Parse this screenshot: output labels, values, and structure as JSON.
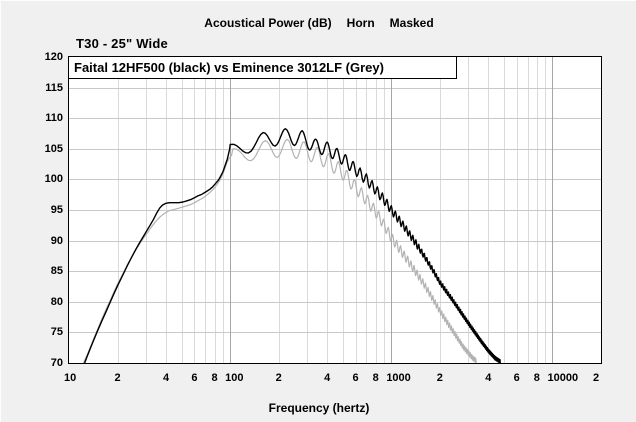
{
  "header": {
    "title_parts": [
      "Acoustical Power (dB)",
      "Horn",
      "Masked"
    ],
    "subtitle": "T30 - 25\" Wide"
  },
  "colors": {
    "window_bg": "#f0f0f0",
    "plot_bg": "#ffffff",
    "plot_border": "#000000",
    "grid_horizontal": "#c9c9c9",
    "grid_minor": "#dadada",
    "grid_decade": "#a6a6a6",
    "series_black": "#000000",
    "series_grey": "#b2b2b2"
  },
  "chart_data": {
    "type": "line",
    "title": "Acoustical Power (dB)",
    "modes": [
      "Horn",
      "Masked"
    ],
    "legend": "Faital 12HF500 (black) vs Eminence 3012LF (Grey)",
    "legend_position": "top-left",
    "xlabel": "Frequency (hertz)",
    "x_scale": "log",
    "x_range_hz": [
      10,
      20000
    ],
    "y_range_db": [
      70,
      120
    ],
    "y_tick_step": 5,
    "y_ticks": [
      120,
      115,
      110,
      105,
      100,
      95,
      90,
      85,
      80,
      75,
      70
    ],
    "x_ticks": [
      {
        "label": "10",
        "f": 10
      },
      {
        "label": "2",
        "f": 20
      },
      {
        "label": "4",
        "f": 40
      },
      {
        "label": "6",
        "f": 60
      },
      {
        "label": "8",
        "f": 80
      },
      {
        "label": "100",
        "f": 100
      },
      {
        "label": "2",
        "f": 200
      },
      {
        "label": "4",
        "f": 400
      },
      {
        "label": "6",
        "f": 600
      },
      {
        "label": "8",
        "f": 800
      },
      {
        "label": "1000",
        "f": 1000
      },
      {
        "label": "2",
        "f": 2000
      },
      {
        "label": "4",
        "f": 4000
      },
      {
        "label": "6",
        "f": 6000
      },
      {
        "label": "8",
        "f": 8000
      },
      {
        "label": "10000",
        "f": 10000
      },
      {
        "label": "2",
        "f": 20000
      }
    ],
    "grid": {
      "horizontal_db_step": 5,
      "vertical_minor_per_decade": [
        2,
        3,
        4,
        5,
        6,
        7,
        8,
        9
      ],
      "decade_lines_hz": [
        100,
        1000,
        10000
      ]
    },
    "series": [
      {
        "name": "Faital 12HF500",
        "color": "#000000",
        "stroke_width": 1.4,
        "points_low": [
          [
            12.5,
            70
          ],
          [
            13,
            71.2
          ],
          [
            14,
            73.3
          ],
          [
            15,
            75.2
          ],
          [
            16,
            76.9
          ],
          [
            17,
            78.4
          ],
          [
            18,
            79.9
          ],
          [
            19,
            81.3
          ],
          [
            20,
            82.6
          ],
          [
            21.5,
            84.3
          ],
          [
            23,
            85.9
          ],
          [
            24.5,
            87.3
          ],
          [
            26,
            88.6
          ],
          [
            27.5,
            89.7
          ],
          [
            29,
            90.7
          ],
          [
            30.5,
            91.7
          ],
          [
            32,
            92.6
          ],
          [
            33.5,
            93.5
          ],
          [
            35,
            94.5
          ],
          [
            36.5,
            95.3
          ],
          [
            38,
            95.8
          ],
          [
            40,
            96.1
          ],
          [
            42,
            96.2
          ],
          [
            45,
            96.2
          ],
          [
            48,
            96.2
          ],
          [
            51,
            96.3
          ],
          [
            54,
            96.5
          ],
          [
            57,
            96.7
          ],
          [
            60,
            97
          ],
          [
            63,
            97.3
          ],
          [
            66,
            97.5
          ],
          [
            69,
            97.8
          ],
          [
            72,
            98.1
          ],
          [
            75,
            98.4
          ],
          [
            78,
            98.8
          ],
          [
            81,
            99.3
          ],
          [
            84,
            99.8
          ],
          [
            86,
            100.2
          ],
          [
            88,
            100.7
          ],
          [
            90,
            101.2
          ],
          [
            92,
            101.9
          ],
          [
            94,
            102.6
          ],
          [
            96,
            103.3
          ],
          [
            98,
            104.3
          ],
          [
            99,
            104.8
          ]
        ],
        "envelope": [
          [
            100,
            104.5
          ],
          [
            160,
            106.4
          ],
          [
            220,
            107.0
          ],
          [
            280,
            106.7
          ],
          [
            340,
            105.4
          ],
          [
            400,
            105.0
          ],
          [
            500,
            103.4
          ],
          [
            600,
            101.6
          ],
          [
            700,
            100.0
          ],
          [
            800,
            98.3
          ],
          [
            900,
            96.7
          ],
          [
            1000,
            95.0
          ],
          [
            1200,
            92.3
          ],
          [
            1400,
            89.8
          ],
          [
            1600,
            87.5
          ],
          [
            1800,
            85.3
          ],
          [
            2000,
            83.2
          ],
          [
            2400,
            80.3
          ],
          [
            2800,
            77.7
          ],
          [
            3200,
            75.5
          ],
          [
            3600,
            73.6
          ],
          [
            4000,
            72.0
          ],
          [
            4400,
            70.8
          ],
          [
            4900,
            70.0
          ],
          [
            5300,
            69.2
          ]
        ],
        "ripple": {
          "start_hz": 100,
          "spacing_hz": 60,
          "amp": [
            [
              100,
              1.2
            ],
            [
              250,
              1.3
            ],
            [
              400,
              1.1
            ],
            [
              700,
              0.9
            ],
            [
              1000,
              0.7
            ],
            [
              2000,
              0.45
            ],
            [
              5300,
              0.3
            ]
          ]
        }
      },
      {
        "name": "Eminence 3012LF",
        "color": "#b2b2b2",
        "stroke_width": 1.2,
        "points_low": [
          [
            12.3,
            70
          ],
          [
            13,
            71.4
          ],
          [
            14,
            73.5
          ],
          [
            15,
            75.4
          ],
          [
            16,
            77.2
          ],
          [
            17,
            78.8
          ],
          [
            18,
            80.2
          ],
          [
            19,
            81.6
          ],
          [
            20,
            82.9
          ],
          [
            21.5,
            84.5
          ],
          [
            23,
            86.0
          ],
          [
            24.5,
            87.3
          ],
          [
            26,
            88.5
          ],
          [
            27.5,
            89.5
          ],
          [
            29,
            90.4
          ],
          [
            30.5,
            91.2
          ],
          [
            32,
            92.0
          ],
          [
            33.5,
            92.7
          ],
          [
            35,
            93.3
          ],
          [
            36.5,
            93.8
          ],
          [
            38,
            94.2
          ],
          [
            40,
            94.6
          ],
          [
            42,
            94.9
          ],
          [
            45,
            95.1
          ],
          [
            48,
            95.3
          ],
          [
            51,
            95.5
          ],
          [
            54,
            95.7
          ],
          [
            57,
            95.9
          ],
          [
            60,
            96.2
          ],
          [
            63,
            96.5
          ],
          [
            66,
            96.8
          ],
          [
            69,
            97.1
          ],
          [
            72,
            97.5
          ],
          [
            75,
            97.9
          ],
          [
            78,
            98.3
          ],
          [
            81,
            98.8
          ],
          [
            84,
            99.4
          ],
          [
            86,
            99.8
          ],
          [
            88,
            100.3
          ],
          [
            90,
            100.9
          ],
          [
            92,
            101.5
          ],
          [
            94,
            102.2
          ],
          [
            96,
            102.9
          ],
          [
            99,
            103.5
          ],
          [
            102,
            103.9
          ]
        ],
        "envelope": [
          [
            104,
            103.7
          ],
          [
            160,
            104.9
          ],
          [
            220,
            105.1
          ],
          [
            280,
            104.8
          ],
          [
            340,
            104.0
          ],
          [
            400,
            103.1
          ],
          [
            500,
            101.1
          ],
          [
            600,
            98.7
          ],
          [
            700,
            96.7
          ],
          [
            800,
            94.7
          ],
          [
            900,
            92.6
          ],
          [
            1000,
            90.5
          ],
          [
            1200,
            87.6
          ],
          [
            1400,
            85.1
          ],
          [
            1600,
            82.8
          ],
          [
            1800,
            80.6
          ],
          [
            2000,
            78.5
          ],
          [
            2400,
            75.3
          ],
          [
            2800,
            72.6
          ],
          [
            3200,
            70.8
          ],
          [
            3700,
            69.5
          ]
        ],
        "ripple": {
          "start_hz": 104,
          "spacing_hz": 61,
          "amp": [
            [
              104,
              1.3
            ],
            [
              250,
              1.5
            ],
            [
              400,
              1.3
            ],
            [
              700,
              1.0
            ],
            [
              1000,
              0.8
            ],
            [
              2000,
              0.5
            ],
            [
              3700,
              0.35
            ]
          ]
        }
      }
    ]
  }
}
